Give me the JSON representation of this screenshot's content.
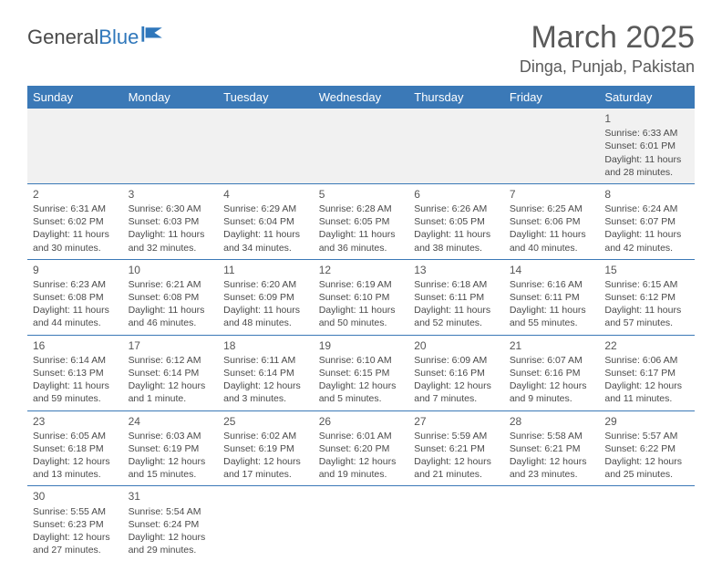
{
  "brand": {
    "part1": "General",
    "part2": "Blue"
  },
  "title": "March 2025",
  "location": "Dinga, Punjab, Pakistan",
  "colors": {
    "header_bg": "#3b79b7",
    "header_text": "#ffffff",
    "rule": "#3b79b7",
    "body_text": "#4a4a4a",
    "title_text": "#5a5a5a",
    "empty_bg": "#f1f1f1",
    "logo_gray": "#4a4a4a",
    "logo_blue": "#2f77bb"
  },
  "typography": {
    "title_fontsize": 34,
    "location_fontsize": 18,
    "dayheader_fontsize": 13,
    "cell_fontsize": 10.5,
    "logo_fontsize": 22
  },
  "day_headers": [
    "Sunday",
    "Monday",
    "Tuesday",
    "Wednesday",
    "Thursday",
    "Friday",
    "Saturday"
  ],
  "weeks": [
    [
      null,
      null,
      null,
      null,
      null,
      null,
      {
        "n": "1",
        "rise": "Sunrise: 6:33 AM",
        "set": "Sunset: 6:01 PM",
        "day": "Daylight: 11 hours and 28 minutes."
      }
    ],
    [
      {
        "n": "2",
        "rise": "Sunrise: 6:31 AM",
        "set": "Sunset: 6:02 PM",
        "day": "Daylight: 11 hours and 30 minutes."
      },
      {
        "n": "3",
        "rise": "Sunrise: 6:30 AM",
        "set": "Sunset: 6:03 PM",
        "day": "Daylight: 11 hours and 32 minutes."
      },
      {
        "n": "4",
        "rise": "Sunrise: 6:29 AM",
        "set": "Sunset: 6:04 PM",
        "day": "Daylight: 11 hours and 34 minutes."
      },
      {
        "n": "5",
        "rise": "Sunrise: 6:28 AM",
        "set": "Sunset: 6:05 PM",
        "day": "Daylight: 11 hours and 36 minutes."
      },
      {
        "n": "6",
        "rise": "Sunrise: 6:26 AM",
        "set": "Sunset: 6:05 PM",
        "day": "Daylight: 11 hours and 38 minutes."
      },
      {
        "n": "7",
        "rise": "Sunrise: 6:25 AM",
        "set": "Sunset: 6:06 PM",
        "day": "Daylight: 11 hours and 40 minutes."
      },
      {
        "n": "8",
        "rise": "Sunrise: 6:24 AM",
        "set": "Sunset: 6:07 PM",
        "day": "Daylight: 11 hours and 42 minutes."
      }
    ],
    [
      {
        "n": "9",
        "rise": "Sunrise: 6:23 AM",
        "set": "Sunset: 6:08 PM",
        "day": "Daylight: 11 hours and 44 minutes."
      },
      {
        "n": "10",
        "rise": "Sunrise: 6:21 AM",
        "set": "Sunset: 6:08 PM",
        "day": "Daylight: 11 hours and 46 minutes."
      },
      {
        "n": "11",
        "rise": "Sunrise: 6:20 AM",
        "set": "Sunset: 6:09 PM",
        "day": "Daylight: 11 hours and 48 minutes."
      },
      {
        "n": "12",
        "rise": "Sunrise: 6:19 AM",
        "set": "Sunset: 6:10 PM",
        "day": "Daylight: 11 hours and 50 minutes."
      },
      {
        "n": "13",
        "rise": "Sunrise: 6:18 AM",
        "set": "Sunset: 6:11 PM",
        "day": "Daylight: 11 hours and 52 minutes."
      },
      {
        "n": "14",
        "rise": "Sunrise: 6:16 AM",
        "set": "Sunset: 6:11 PM",
        "day": "Daylight: 11 hours and 55 minutes."
      },
      {
        "n": "15",
        "rise": "Sunrise: 6:15 AM",
        "set": "Sunset: 6:12 PM",
        "day": "Daylight: 11 hours and 57 minutes."
      }
    ],
    [
      {
        "n": "16",
        "rise": "Sunrise: 6:14 AM",
        "set": "Sunset: 6:13 PM",
        "day": "Daylight: 11 hours and 59 minutes."
      },
      {
        "n": "17",
        "rise": "Sunrise: 6:12 AM",
        "set": "Sunset: 6:14 PM",
        "day": "Daylight: 12 hours and 1 minute."
      },
      {
        "n": "18",
        "rise": "Sunrise: 6:11 AM",
        "set": "Sunset: 6:14 PM",
        "day": "Daylight: 12 hours and 3 minutes."
      },
      {
        "n": "19",
        "rise": "Sunrise: 6:10 AM",
        "set": "Sunset: 6:15 PM",
        "day": "Daylight: 12 hours and 5 minutes."
      },
      {
        "n": "20",
        "rise": "Sunrise: 6:09 AM",
        "set": "Sunset: 6:16 PM",
        "day": "Daylight: 12 hours and 7 minutes."
      },
      {
        "n": "21",
        "rise": "Sunrise: 6:07 AM",
        "set": "Sunset: 6:16 PM",
        "day": "Daylight: 12 hours and 9 minutes."
      },
      {
        "n": "22",
        "rise": "Sunrise: 6:06 AM",
        "set": "Sunset: 6:17 PM",
        "day": "Daylight: 12 hours and 11 minutes."
      }
    ],
    [
      {
        "n": "23",
        "rise": "Sunrise: 6:05 AM",
        "set": "Sunset: 6:18 PM",
        "day": "Daylight: 12 hours and 13 minutes."
      },
      {
        "n": "24",
        "rise": "Sunrise: 6:03 AM",
        "set": "Sunset: 6:19 PM",
        "day": "Daylight: 12 hours and 15 minutes."
      },
      {
        "n": "25",
        "rise": "Sunrise: 6:02 AM",
        "set": "Sunset: 6:19 PM",
        "day": "Daylight: 12 hours and 17 minutes."
      },
      {
        "n": "26",
        "rise": "Sunrise: 6:01 AM",
        "set": "Sunset: 6:20 PM",
        "day": "Daylight: 12 hours and 19 minutes."
      },
      {
        "n": "27",
        "rise": "Sunrise: 5:59 AM",
        "set": "Sunset: 6:21 PM",
        "day": "Daylight: 12 hours and 21 minutes."
      },
      {
        "n": "28",
        "rise": "Sunrise: 5:58 AM",
        "set": "Sunset: 6:21 PM",
        "day": "Daylight: 12 hours and 23 minutes."
      },
      {
        "n": "29",
        "rise": "Sunrise: 5:57 AM",
        "set": "Sunset: 6:22 PM",
        "day": "Daylight: 12 hours and 25 minutes."
      }
    ],
    [
      {
        "n": "30",
        "rise": "Sunrise: 5:55 AM",
        "set": "Sunset: 6:23 PM",
        "day": "Daylight: 12 hours and 27 minutes."
      },
      {
        "n": "31",
        "rise": "Sunrise: 5:54 AM",
        "set": "Sunset: 6:24 PM",
        "day": "Daylight: 12 hours and 29 minutes."
      },
      null,
      null,
      null,
      null,
      null
    ]
  ]
}
